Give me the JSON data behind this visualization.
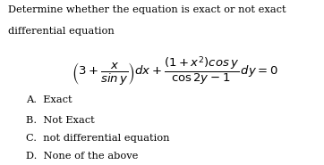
{
  "background_color": "#ffffff",
  "title_line1": "Determine whether the equation is exact or not exact",
  "title_line2": "differential equation",
  "choices": [
    "A.  Exact",
    "B.  Not Exact",
    "C.  not differential equation",
    "D.  None of the above"
  ],
  "text_color": "#000000",
  "font_size_title": 8.2,
  "font_size_choices": 8.2,
  "font_size_math": 9.5,
  "eq": "$\\left(3+\\dfrac{x}{sin\\,y}\\right)dx+\\dfrac{(1+x^2)cos\\,y}{\\cos 2y-1}\\,dy=0$"
}
